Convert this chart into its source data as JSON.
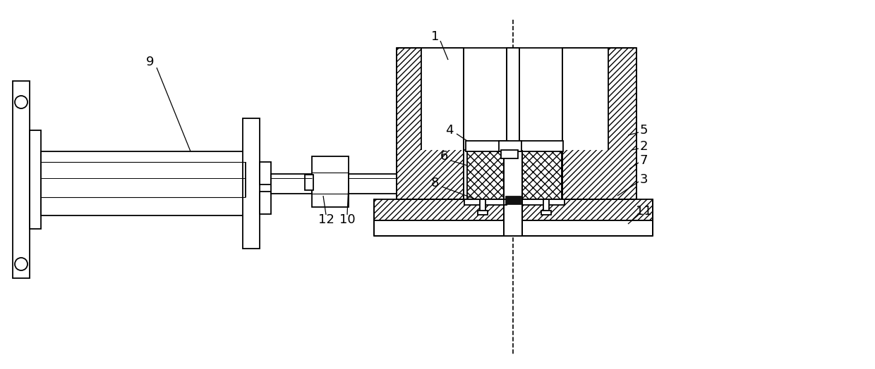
{
  "bg_color": "#ffffff",
  "lc": "#000000",
  "lw": 1.3,
  "fig_width": 12.4,
  "fig_height": 5.24,
  "dpi": 100
}
